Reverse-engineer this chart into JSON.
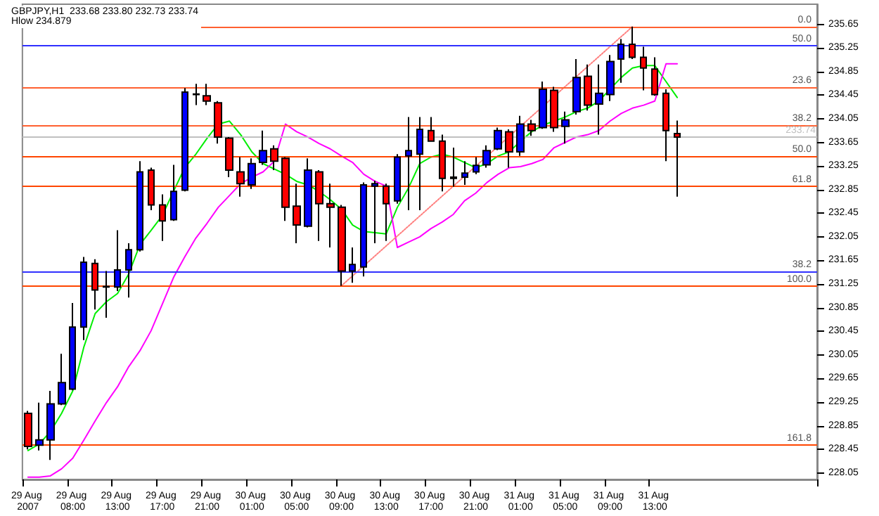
{
  "chart_data": {
    "type": "candlestick",
    "title": "GBPJPY,H1  233.68 233.80 232.73 233.74",
    "subtitle": "Hlow 234.879",
    "categories": [
      "29 Aug 2007",
      null,
      null,
      null,
      "29 Aug 08:00",
      null,
      null,
      null,
      "29 Aug 13:00",
      null,
      null,
      null,
      "29 Aug 17:00",
      null,
      null,
      null,
      "29 Aug 21:00",
      null,
      null,
      null,
      "30 Aug 01:00",
      null,
      null,
      null,
      "30 Aug 05:00",
      null,
      null,
      null,
      "30 Aug 09:00",
      null,
      null,
      null,
      "30 Aug 13:00",
      null,
      null,
      null,
      "30 Aug 17:00",
      null,
      null,
      null,
      "30 Aug 21:00",
      null,
      null,
      null,
      "31 Aug 01:00",
      null,
      null,
      null,
      "31 Aug 05:00",
      null,
      null,
      null,
      "31 Aug 09:00",
      null,
      null,
      null,
      "31 Aug 13:00",
      null,
      null,
      null,
      null,
      null,
      null,
      null,
      null,
      null,
      null,
      null,
      null,
      null,
      null
    ],
    "ohlc": [
      [
        229.06,
        229.1,
        228.45,
        228.5
      ],
      [
        228.52,
        229.24,
        228.43,
        228.61
      ],
      [
        228.61,
        229.44,
        228.27,
        229.22
      ],
      [
        229.22,
        230.07,
        229.2,
        229.58
      ],
      [
        229.47,
        230.93,
        229.45,
        230.52
      ],
      [
        230.52,
        231.71,
        230.3,
        231.62
      ],
      [
        231.6,
        231.67,
        230.82,
        231.15
      ],
      [
        231.2,
        231.47,
        230.68,
        231.21
      ],
      [
        231.2,
        232.16,
        231.13,
        231.49
      ],
      [
        231.49,
        231.94,
        231.02,
        231.83
      ],
      [
        231.83,
        233.33,
        231.8,
        233.15
      ],
      [
        233.18,
        233.22,
        232.5,
        232.59
      ],
      [
        232.59,
        232.77,
        231.98,
        232.32
      ],
      [
        232.34,
        233.27,
        232.32,
        232.82
      ],
      [
        232.84,
        234.57,
        232.82,
        234.5
      ],
      [
        234.46,
        234.64,
        234.28,
        234.47
      ],
      [
        234.44,
        234.64,
        234.28,
        234.35
      ],
      [
        234.32,
        234.35,
        233.63,
        233.74
      ],
      [
        233.72,
        233.74,
        233.06,
        233.18
      ],
      [
        233.15,
        233.4,
        232.73,
        232.95
      ],
      [
        232.93,
        233.38,
        232.86,
        233.29
      ],
      [
        233.31,
        233.85,
        233.27,
        233.51
      ],
      [
        233.54,
        233.6,
        233.18,
        233.33
      ],
      [
        233.38,
        233.4,
        232.32,
        232.55
      ],
      [
        232.57,
        232.95,
        231.94,
        232.25
      ],
      [
        232.23,
        233.38,
        232.21,
        233.18
      ],
      [
        233.15,
        233.18,
        231.98,
        232.61
      ],
      [
        232.61,
        232.95,
        231.87,
        232.55
      ],
      [
        232.55,
        232.59,
        231.22,
        231.47
      ],
      [
        231.47,
        231.87,
        231.27,
        231.58
      ],
      [
        231.54,
        232.97,
        231.38,
        232.93
      ],
      [
        232.91,
        233.0,
        231.94,
        232.95
      ],
      [
        232.91,
        232.95,
        231.98,
        232.61
      ],
      [
        232.66,
        233.45,
        232.61,
        233.4
      ],
      [
        233.42,
        234.08,
        232.5,
        233.51
      ],
      [
        233.45,
        234.08,
        232.5,
        233.87
      ],
      [
        233.85,
        234.08,
        233.67,
        233.67
      ],
      [
        233.67,
        233.78,
        232.82,
        233.04
      ],
      [
        233.04,
        233.56,
        232.9,
        233.06
      ],
      [
        233.06,
        233.33,
        232.93,
        233.13
      ],
      [
        233.15,
        233.4,
        233.11,
        233.26
      ],
      [
        233.27,
        233.6,
        233.22,
        233.51
      ],
      [
        233.54,
        233.9,
        233.52,
        233.85
      ],
      [
        233.83,
        233.87,
        233.22,
        233.49
      ],
      [
        233.49,
        234.1,
        233.42,
        233.96
      ],
      [
        233.96,
        234.03,
        233.76,
        233.85
      ],
      [
        233.9,
        234.68,
        233.88,
        234.55
      ],
      [
        234.53,
        234.59,
        233.83,
        233.9
      ],
      [
        233.92,
        234.17,
        233.63,
        234.03
      ],
      [
        234.17,
        235.06,
        234.12,
        234.75
      ],
      [
        234.77,
        234.97,
        234.19,
        234.28
      ],
      [
        234.3,
        234.97,
        233.78,
        234.48
      ],
      [
        234.46,
        235.13,
        234.35,
        235.02
      ],
      [
        235.06,
        235.4,
        234.66,
        235.31
      ],
      [
        235.31,
        235.61,
        235.06,
        235.09
      ],
      [
        235.09,
        235.27,
        234.53,
        234.91
      ],
      [
        234.89,
        235.09,
        234.44,
        234.46
      ],
      [
        234.48,
        234.55,
        233.33,
        233.85
      ],
      [
        233.8,
        234.02,
        232.73,
        233.74
      ],
      null,
      null,
      null,
      null,
      null,
      null,
      null,
      null,
      null,
      null,
      null,
      null
    ],
    "colors": [
      "#ff0000",
      "#0000ff",
      "#0000ff",
      "#0000ff",
      "#0000ff",
      "#0000ff",
      "#ff0000",
      "#000000",
      "#0000ff",
      "#0000ff",
      "#0000ff",
      "#ff0000",
      "#ff0000",
      "#0000ff",
      "#0000ff",
      "#000000",
      "#ff0000",
      "#ff0000",
      "#ff0000",
      "#ff0000",
      "#0000ff",
      "#0000ff",
      "#ff0000",
      "#ff0000",
      "#ff0000",
      "#0000ff",
      "#ff0000",
      "#ff0000",
      "#ff0000",
      "#0000ff",
      "#0000ff",
      "#0000ff",
      "#ff0000",
      "#0000ff",
      "#0000ff",
      "#0000ff",
      "#ff0000",
      "#ff0000",
      "#000000",
      "#0000ff",
      "#0000ff",
      "#0000ff",
      "#0000ff",
      "#ff0000",
      "#0000ff",
      "#ff0000",
      "#0000ff",
      "#ff0000",
      "#0000ff",
      "#0000ff",
      "#ff0000",
      "#0000ff",
      "#0000ff",
      "#0000ff",
      "#ff0000",
      "#ff0000",
      "#ff0000",
      "#ff0000",
      "#ff0000",
      null,
      null,
      null,
      null,
      null,
      null,
      null,
      null,
      null,
      null,
      null,
      null
    ],
    "series": [
      {
        "type": "line",
        "color": "#00ee00",
        "values": [
          228.43,
          228.54,
          228.75,
          229.06,
          229.44,
          230.19,
          230.75,
          230.95,
          231.09,
          231.42,
          231.92,
          232.16,
          232.41,
          232.82,
          233.22,
          233.45,
          233.72,
          233.96,
          234.01,
          233.78,
          233.49,
          233.29,
          233.2,
          233.11,
          232.99,
          232.93,
          232.82,
          232.68,
          232.52,
          232.25,
          232.14,
          232.12,
          232.1,
          232.55,
          232.88,
          233.29,
          233.4,
          233.45,
          233.4,
          233.31,
          233.22,
          233.29,
          233.42,
          233.49,
          233.67,
          233.83,
          233.94,
          234.01,
          234.08,
          234.17,
          234.23,
          234.35,
          234.55,
          234.75,
          234.91,
          234.95,
          234.95,
          234.68,
          234.41,
          null,
          null,
          null,
          null,
          null,
          null,
          null,
          null,
          null,
          null,
          null,
          null
        ]
      },
      {
        "type": "line",
        "color": "#ff00ff",
        "values": [
          227.98,
          227.98,
          228.0,
          228.12,
          228.3,
          228.61,
          228.93,
          229.24,
          229.51,
          229.85,
          230.12,
          230.46,
          230.91,
          231.36,
          231.71,
          232.03,
          232.28,
          232.55,
          232.75,
          232.95,
          233.06,
          233.15,
          233.33,
          233.96,
          233.83,
          233.74,
          233.63,
          233.54,
          233.42,
          233.31,
          233.11,
          232.99,
          232.91,
          231.87,
          231.96,
          232.05,
          232.19,
          232.3,
          232.43,
          232.66,
          232.79,
          232.97,
          233.11,
          233.22,
          233.24,
          233.29,
          233.36,
          233.56,
          233.65,
          233.74,
          233.78,
          233.85,
          234.01,
          234.14,
          234.23,
          234.28,
          234.35,
          234.98,
          234.98,
          null,
          null,
          null,
          null,
          null,
          null,
          null,
          null,
          null,
          null,
          null,
          null
        ]
      },
      {
        "type": "line",
        "color": "#ff8080",
        "line_style": "dotted",
        "values": [
          null,
          null,
          null,
          null,
          null,
          null,
          null,
          null,
          null,
          null,
          null,
          null,
          null,
          null,
          null,
          null,
          null,
          null,
          null,
          null,
          null,
          null,
          null,
          null,
          null,
          null,
          null,
          null,
          231.22,
          null,
          null,
          null,
          null,
          null,
          null,
          null,
          null,
          null,
          null,
          null,
          null,
          null,
          null,
          null,
          null,
          null,
          null,
          null,
          null,
          null,
          null,
          null,
          null,
          null,
          235.61,
          null,
          null,
          null,
          null,
          null,
          null,
          null,
          null,
          null,
          null,
          null,
          null,
          null,
          null,
          null,
          null
        ]
      }
    ],
    "ref_lines": [
      {
        "axis": "y",
        "value": 235.61,
        "color": "#ff6030"
      },
      {
        "axis": "y",
        "value": 235.29,
        "color": "#3030ff"
      },
      {
        "axis": "y",
        "value": 234.59,
        "color": "#ff6030"
      },
      {
        "axis": "y",
        "value": 233.94,
        "color": "#ff6030"
      },
      {
        "axis": "y",
        "value": 233.74,
        "label": "233.74",
        "color": "#c0c0c0"
      },
      {
        "axis": "y",
        "value": 233.42,
        "color": "#ff4500"
      },
      {
        "axis": "y",
        "value": 232.91,
        "color": "#ff4500"
      },
      {
        "axis": "y",
        "value": 231.47,
        "color": "#3030ff"
      },
      {
        "axis": "y",
        "value": 231.22,
        "color": "#ff4500"
      },
      {
        "axis": "y",
        "value": 228.52,
        "color": "#ff4500"
      }
    ],
    "annotations": [
      {
        "text": "0.0",
        "y": 235.61
      },
      {
        "text": "50.0",
        "y": 235.29
      },
      {
        "text": "23.6",
        "y": 234.59
      },
      {
        "text": "38.2",
        "y": 233.94
      },
      {
        "text": "50.0",
        "y": 233.42
      },
      {
        "text": "61.8",
        "y": 232.91
      },
      {
        "text": "38.2",
        "y": 231.47
      },
      {
        "text": "100.0",
        "y": 231.22
      },
      {
        "text": "161.8",
        "y": 228.52
      }
    ],
    "ylim": [
      227.94,
      235.99
    ],
    "yticks": [
      228.05,
      228.45,
      228.85,
      229.25,
      229.65,
      230.05,
      230.45,
      230.85,
      231.25,
      231.65,
      232.05,
      232.45,
      232.85,
      233.25,
      233.65,
      234.05,
      234.45,
      234.85,
      235.25,
      235.65
    ],
    "grid": false,
    "marker": "none"
  }
}
